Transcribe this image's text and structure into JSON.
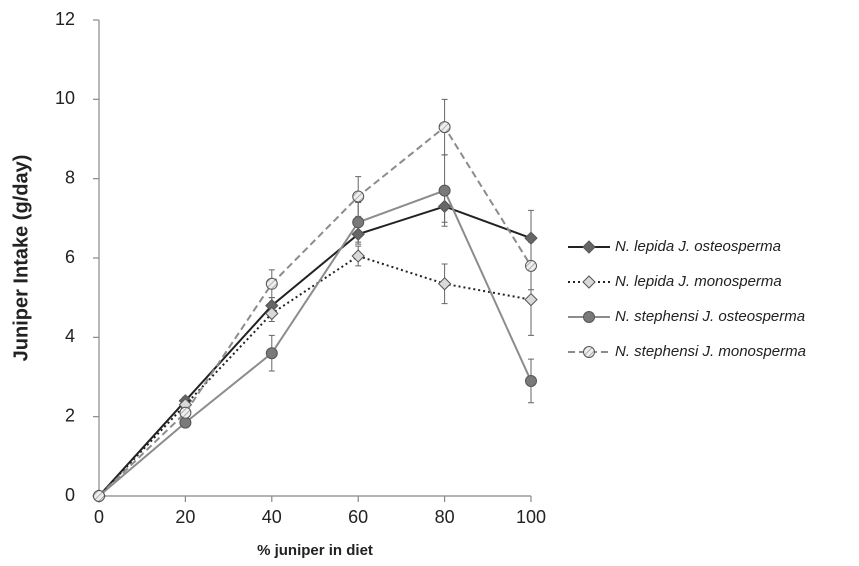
{
  "chart_data": {
    "type": "line",
    "x_label": "% juniper in diet",
    "y_label": "Juniper Intake (g/day)",
    "x": [
      0,
      20,
      40,
      60,
      80,
      100
    ],
    "xlim": [
      0,
      100
    ],
    "xticks": [
      0,
      20,
      40,
      60,
      80,
      100
    ],
    "ylim": [
      0,
      12
    ],
    "yticks": [
      0,
      2,
      4,
      6,
      8,
      10,
      12
    ],
    "grid": false,
    "legend": "right",
    "series": [
      {
        "name": "N. lepida J. osteosperma",
        "color": "#222222",
        "marker": "diamond",
        "marker_fill": "#666666",
        "dash": "solid",
        "values": [
          0,
          2.4,
          4.8,
          6.6,
          7.3,
          6.5
        ],
        "errors": [
          0,
          0.1,
          0.2,
          0.25,
          0.4,
          0.7
        ]
      },
      {
        "name": "N. lepida J. monosperma",
        "color": "#222222",
        "marker": "diamond",
        "marker_fill": "#d9d9d9",
        "dash": "dotted",
        "values": [
          0,
          2.3,
          4.6,
          6.05,
          5.35,
          4.95
        ],
        "errors": [
          0,
          0.1,
          0.2,
          0.25,
          0.5,
          0.9
        ]
      },
      {
        "name": "N. stephensi J. osteosperma",
        "color": "#8c8c8c",
        "marker": "circle",
        "marker_fill": "#7a7a7a",
        "dash": "solid",
        "values": [
          0,
          1.85,
          3.6,
          6.9,
          7.7,
          2.9
        ],
        "errors": [
          0,
          0.1,
          0.45,
          0.5,
          0.9,
          0.55
        ]
      },
      {
        "name": "N. stephensi J. monosperma",
        "color": "#8c8c8c",
        "marker": "circle",
        "marker_fill": "hatch",
        "dash": "dashed",
        "values": [
          0,
          2.1,
          5.35,
          7.55,
          9.3,
          5.8
        ],
        "errors": [
          0,
          0.1,
          0.35,
          0.5,
          0.7,
          0.6
        ]
      }
    ]
  }
}
